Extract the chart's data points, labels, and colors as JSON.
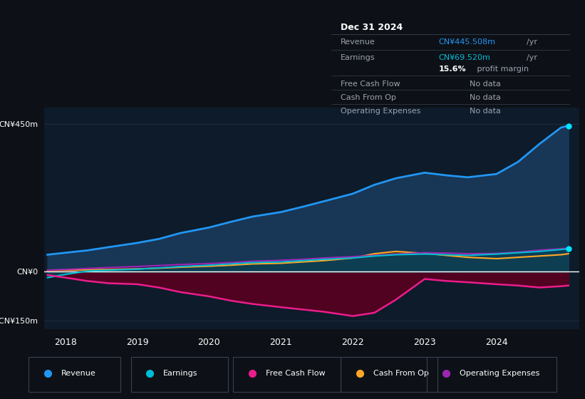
{
  "background_color": "#0d1117",
  "chart_bg_color": "#0d1b2a",
  "ylim": [
    -175,
    500
  ],
  "xlim": [
    2017.7,
    2025.15
  ],
  "yticks": [
    -150,
    0,
    450
  ],
  "ytick_labels": [
    "-CN¥150m",
    "CN¥0",
    "CN¥450m"
  ],
  "xticks": [
    2018,
    2019,
    2020,
    2021,
    2022,
    2023,
    2024
  ],
  "grid_color": "#1e2d3e",
  "zero_line_color": "#ffffff",
  "revenue": {
    "x": [
      2017.75,
      2018.0,
      2018.3,
      2018.6,
      2019.0,
      2019.3,
      2019.6,
      2020.0,
      2020.3,
      2020.6,
      2021.0,
      2021.3,
      2021.6,
      2022.0,
      2022.3,
      2022.6,
      2023.0,
      2023.3,
      2023.6,
      2024.0,
      2024.3,
      2024.6,
      2024.9,
      2025.0
    ],
    "y": [
      52,
      58,
      65,
      75,
      88,
      100,
      118,
      135,
      152,
      168,
      182,
      198,
      215,
      238,
      265,
      285,
      302,
      294,
      288,
      298,
      335,
      390,
      440,
      445
    ],
    "color": "#2196f3",
    "fill_color": "#1a3a5c",
    "label": "Revenue",
    "dot_color": "#00e5ff"
  },
  "earnings": {
    "x": [
      2017.75,
      2018.0,
      2018.3,
      2018.6,
      2019.0,
      2019.3,
      2019.6,
      2020.0,
      2020.3,
      2020.6,
      2021.0,
      2021.3,
      2021.6,
      2022.0,
      2022.3,
      2022.6,
      2023.0,
      2023.3,
      2023.6,
      2024.0,
      2024.3,
      2024.6,
      2024.9,
      2025.0
    ],
    "y": [
      -18,
      -8,
      2,
      5,
      8,
      12,
      16,
      20,
      24,
      28,
      30,
      34,
      38,
      42,
      48,
      52,
      54,
      52,
      50,
      54,
      58,
      62,
      68,
      70
    ],
    "color": "#00bcd4",
    "fill_color": "#004d5a",
    "label": "Earnings",
    "dot_color": "#00e5ff"
  },
  "free_cash_flow": {
    "x": [
      2017.75,
      2018.0,
      2018.3,
      2018.6,
      2019.0,
      2019.3,
      2019.6,
      2020.0,
      2020.3,
      2020.6,
      2021.0,
      2021.3,
      2021.6,
      2022.0,
      2022.3,
      2022.6,
      2023.0,
      2023.3,
      2023.6,
      2024.0,
      2024.3,
      2024.6,
      2024.9,
      2025.0
    ],
    "y": [
      -10,
      -18,
      -28,
      -35,
      -38,
      -48,
      -62,
      -75,
      -88,
      -98,
      -108,
      -115,
      -122,
      -135,
      -125,
      -85,
      -22,
      -28,
      -32,
      -38,
      -42,
      -48,
      -44,
      -42
    ],
    "color": "#e91e8c",
    "fill_color": "#5a0020",
    "label": "Free Cash Flow"
  },
  "cash_from_op": {
    "x": [
      2017.75,
      2018.0,
      2018.3,
      2018.6,
      2019.0,
      2019.3,
      2019.6,
      2020.0,
      2020.3,
      2020.6,
      2021.0,
      2021.3,
      2021.6,
      2022.0,
      2022.3,
      2022.6,
      2023.0,
      2023.3,
      2023.6,
      2024.0,
      2024.3,
      2024.6,
      2024.9,
      2025.0
    ],
    "y": [
      4,
      5,
      6,
      7,
      9,
      11,
      14,
      17,
      20,
      24,
      26,
      30,
      34,
      42,
      55,
      62,
      56,
      50,
      44,
      40,
      44,
      48,
      52,
      55
    ],
    "color": "#ffa726",
    "fill_color": "#4a3800",
    "label": "Cash From Op"
  },
  "operating_expenses": {
    "x": [
      2017.75,
      2018.0,
      2018.3,
      2018.6,
      2019.0,
      2019.3,
      2019.6,
      2020.0,
      2020.3,
      2020.6,
      2021.0,
      2021.3,
      2021.6,
      2022.0,
      2022.3,
      2022.6,
      2023.0,
      2023.3,
      2023.6,
      2024.0,
      2024.3,
      2024.6,
      2024.9,
      2025.0
    ],
    "y": [
      5,
      7,
      10,
      13,
      16,
      19,
      22,
      25,
      28,
      32,
      35,
      38,
      42,
      46,
      50,
      54,
      58,
      57,
      55,
      56,
      60,
      66,
      70,
      72
    ],
    "color": "#9c27b0",
    "fill_color": "#3a0050",
    "label": "Operating Expenses"
  },
  "tooltip": {
    "date": "Dec 31 2024",
    "revenue_val": "CN¥445.508m",
    "earnings_val": "CN¥69.520m",
    "profit_margin": "15.6%",
    "bg_color": "#111827",
    "border_color": "#374151",
    "text_color_main": "#9ca3af",
    "text_color_highlight_blue": "#2196f3",
    "text_color_highlight_cyan": "#00bcd4"
  },
  "legend_items": [
    {
      "label": "Revenue",
      "color": "#2196f3"
    },
    {
      "label": "Earnings",
      "color": "#00bcd4"
    },
    {
      "label": "Free Cash Flow",
      "color": "#e91e8c"
    },
    {
      "label": "Cash From Op",
      "color": "#ffa726"
    },
    {
      "label": "Operating Expenses",
      "color": "#9c27b0"
    }
  ]
}
